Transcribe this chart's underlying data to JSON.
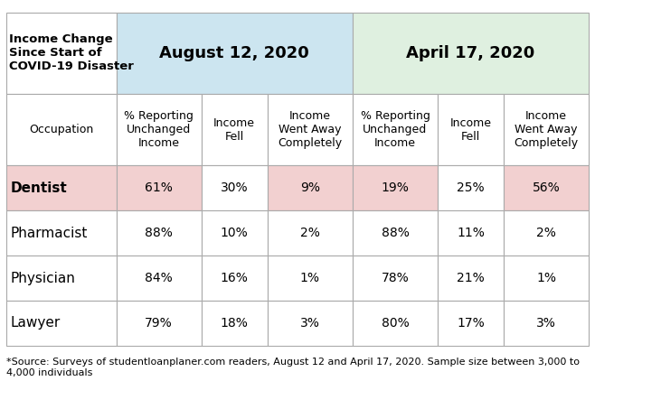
{
  "top_left_text": "Income Change\nSince Start of\nCOVID-19 Disaster",
  "col_group_1": "August 12, 2020",
  "col_group_2": "April 17, 2020",
  "col_headers": [
    "Occupation",
    "% Reporting\nUnchanged\nIncome",
    "Income\nFell",
    "Income\nWent Away\nCompletely",
    "% Reporting\nUnchanged\nIncome",
    "Income\nFell",
    "Income\nWent Away\nCompletely"
  ],
  "rows": [
    [
      "Dentist",
      "61%",
      "30%",
      "9%",
      "19%",
      "25%",
      "56%"
    ],
    [
      "Pharmacist",
      "88%",
      "10%",
      "2%",
      "88%",
      "11%",
      "2%"
    ],
    [
      "Physician",
      "84%",
      "16%",
      "1%",
      "78%",
      "21%",
      "1%"
    ],
    [
      "Lawyer",
      "79%",
      "18%",
      "3%",
      "80%",
      "17%",
      "3%"
    ]
  ],
  "footnote": "*Source: Surveys of studentloanplaner.com readers, August 12 and April 17, 2020. Sample size between 3,000 to\n4,000 individuals",
  "bg_color": "#ffffff",
  "group1_bg": "#cce5f0",
  "group2_bg": "#dff0e0",
  "header_row_bg": "#ffffff",
  "dentist_highlight_bg": "#f2d0d0",
  "dentist_highlight_cols_aug": [
    1,
    3
  ],
  "dentist_highlight_cols_apr": [
    4,
    6
  ],
  "border_color": "#aaaaaa",
  "text_color": "#000000",
  "group_header_fontsize": 13,
  "col_header_fontsize": 9,
  "cell_fontsize": 10,
  "footnote_fontsize": 8
}
